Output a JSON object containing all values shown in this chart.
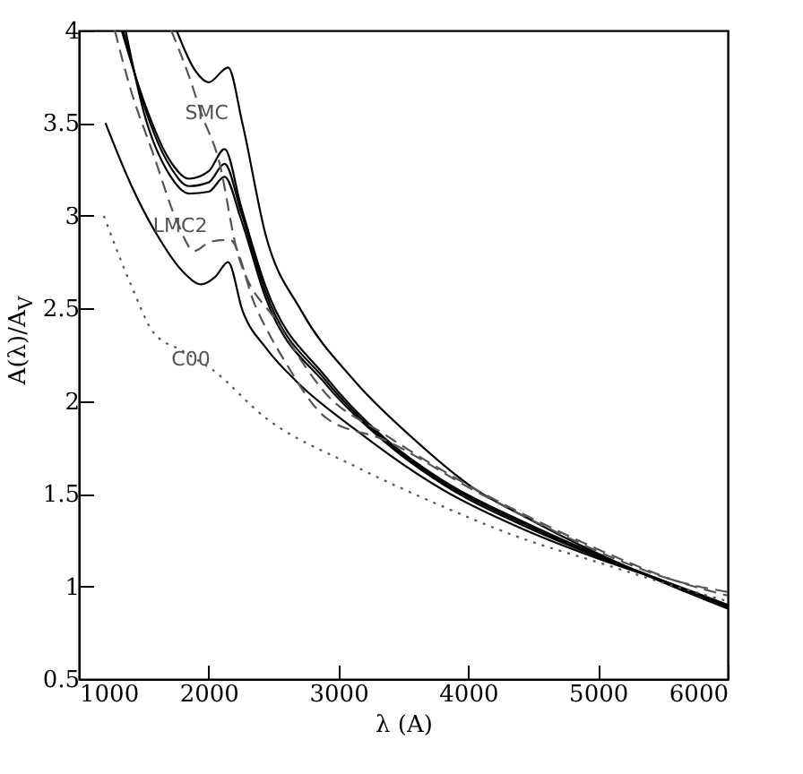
{
  "chart_data": {
    "type": "line",
    "xlabel": "λ (A)",
    "ylabel": "A(λ)/A$_{V}$",
    "xlim": [
      1000,
      6000
    ],
    "ylim": [
      0.5,
      4
    ],
    "xticks": [
      1000,
      2000,
      3000,
      4000,
      5000,
      6000
    ],
    "yticks": [
      0.5,
      1,
      1.5,
      2,
      2.5,
      3,
      3.5,
      4
    ],
    "grid": false,
    "marker": "none",
    "series": [
      {
        "color": "#000000",
        "line_style": "solid",
        "x": [
          1753,
          1900,
          2000,
          2150,
          2260,
          2438,
          2712,
          3123,
          3589,
          4041,
          4452,
          4726,
          5178,
          5644,
          6000
        ],
        "values": [
          4.0,
          3.78,
          3.72,
          3.8,
          3.5,
          2.9,
          2.49,
          2.11,
          1.79,
          1.53,
          1.37,
          1.27,
          1.12,
          0.98,
          0.88
        ]
      },
      {
        "color": "#000000",
        "line_style": "solid",
        "x": [
          1330,
          1500,
          1700,
          1849,
          2000,
          2123,
          2250,
          2438,
          2904,
          3356,
          3808,
          4452,
          5000,
          5500,
          6000
        ],
        "values": [
          4.0,
          3.62,
          3.3,
          3.2,
          3.24,
          3.36,
          3.05,
          2.62,
          2.13,
          1.8,
          1.57,
          1.34,
          1.17,
          1.03,
          0.89
        ]
      },
      {
        "color": "#000000",
        "line_style": "solid",
        "x": [
          1342,
          1500,
          1700,
          1849,
          2000,
          2123,
          2250,
          2438,
          2904,
          3356,
          3808,
          4452,
          5000,
          5500,
          6000
        ],
        "values": [
          4.0,
          3.6,
          3.27,
          3.16,
          3.18,
          3.28,
          3.02,
          2.59,
          2.11,
          1.79,
          1.56,
          1.33,
          1.16,
          1.03,
          0.89
        ]
      },
      {
        "color": "#000000",
        "line_style": "solid",
        "x": [
          1360,
          1500,
          1700,
          1849,
          2000,
          2123,
          2250,
          2438,
          2904,
          3356,
          3808,
          4452,
          5000,
          5500,
          6000
        ],
        "values": [
          4.0,
          3.56,
          3.22,
          3.12,
          3.13,
          3.21,
          2.98,
          2.56,
          2.09,
          1.78,
          1.55,
          1.32,
          1.16,
          1.03,
          0.89
        ]
      },
      {
        "color": "#000000",
        "line_style": "solid",
        "x": [
          1205,
          1400,
          1600,
          1800,
          1945,
          2050,
          2150,
          2260,
          2450,
          2671,
          3123,
          3808,
          4452,
          5000,
          5500,
          6000
        ],
        "values": [
          3.5,
          3.17,
          2.9,
          2.7,
          2.63,
          2.67,
          2.75,
          2.49,
          2.28,
          2.11,
          1.85,
          1.52,
          1.3,
          1.15,
          1.03,
          0.9
        ]
      },
      {
        "color": "#555555",
        "line_style": "dashed",
        "x": [
          1712,
          1850,
          1945,
          2082,
          2219,
          2534,
          2904,
          3356,
          4041,
          4600,
          5200,
          5600,
          6000
        ],
        "values": [
          4.0,
          3.75,
          3.55,
          3.29,
          2.81,
          2.42,
          2.04,
          1.82,
          1.53,
          1.33,
          1.14,
          1.03,
          0.95
        ]
      },
      {
        "color": "#555555",
        "line_style": "dashed",
        "x": [
          1277,
          1400,
          1575,
          1750,
          1890,
          2014,
          2164,
          2356,
          2600,
          2904,
          3356,
          4041,
          4600,
          5200,
          5600,
          6000
        ],
        "values": [
          4.0,
          3.68,
          3.33,
          2.98,
          2.81,
          2.86,
          2.87,
          2.52,
          2.2,
          1.91,
          1.79,
          1.52,
          1.32,
          1.13,
          1.03,
          0.97
        ]
      },
      {
        "color": "#555555",
        "line_style": "dotted",
        "x": [
          1192,
          1400,
          1575,
          1800,
          2027,
          2438,
          3123,
          3808,
          4411,
          5000,
          5500,
          6000
        ],
        "values": [
          3.0,
          2.63,
          2.37,
          2.27,
          2.17,
          1.91,
          1.65,
          1.43,
          1.26,
          1.13,
          1.02,
          0.92
        ]
      }
    ],
    "annotations": [
      {
        "text": "SMC",
        "x": 1986,
        "y": 3.55
      },
      {
        "text": "LMC2",
        "x": 1781,
        "y": 2.94
      },
      {
        "text": "C00",
        "x": 1863,
        "y": 2.22
      }
    ]
  }
}
